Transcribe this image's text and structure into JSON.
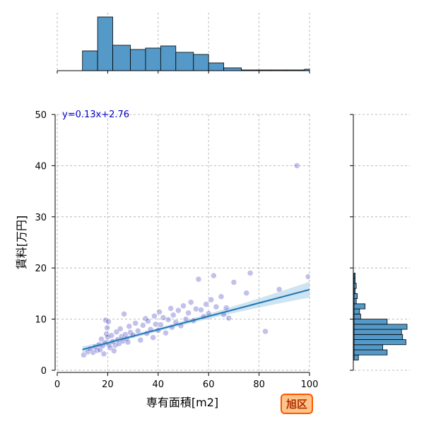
{
  "chart_data": {
    "type": "scatter",
    "xlabel": "専有面積[m2]",
    "ylabel": "賃料[万円]",
    "xlim": [
      0,
      100
    ],
    "ylim": [
      0,
      50
    ],
    "x_ticks": [
      0,
      20,
      40,
      60,
      80,
      100
    ],
    "y_ticks": [
      0,
      10,
      20,
      30,
      40,
      50
    ],
    "grid": true,
    "equation_label": "y=0.13x+2.76",
    "badge_label": "旭区",
    "regression": {
      "slope": 0.13,
      "intercept": 2.76,
      "x_range": [
        10,
        100
      ]
    },
    "x_histogram": {
      "bin_edges": [
        0,
        5,
        10,
        16,
        22,
        29,
        35,
        41,
        47,
        54,
        60,
        66,
        73,
        79,
        85,
        91,
        98,
        100
      ],
      "counts": [
        0,
        0,
        28,
        76,
        36,
        30,
        32,
        35,
        26,
        23,
        11,
        4,
        1,
        1,
        1,
        1,
        2
      ]
    },
    "y_histogram": {
      "bin_edges": [
        2,
        3,
        4,
        5,
        6,
        7,
        8,
        9,
        10,
        11,
        12,
        13,
        14,
        15,
        16,
        17,
        18,
        19
      ],
      "counts": [
        4,
        30,
        26,
        47,
        44,
        43,
        48,
        30,
        6,
        5,
        10,
        2,
        3,
        1,
        2,
        1,
        1
      ]
    },
    "points": [
      [
        10.5,
        3.0
      ],
      [
        12.1,
        3.6
      ],
      [
        13.0,
        4.2
      ],
      [
        14.2,
        3.5
      ],
      [
        15.0,
        4.6
      ],
      [
        15.8,
        3.9
      ],
      [
        16.5,
        5.0
      ],
      [
        17.0,
        4.0
      ],
      [
        17.5,
        6.1
      ],
      [
        18.0,
        4.8
      ],
      [
        18.5,
        3.2
      ],
      [
        19.0,
        5.4
      ],
      [
        19.2,
        9.8
      ],
      [
        19.5,
        7.1
      ],
      [
        19.8,
        8.3
      ],
      [
        20.0,
        6.5
      ],
      [
        20.3,
        9.5
      ],
      [
        20.5,
        5.0
      ],
      [
        21.0,
        4.4
      ],
      [
        21.5,
        6.8
      ],
      [
        22.0,
        5.6
      ],
      [
        22.5,
        3.8
      ],
      [
        23.0,
        4.9
      ],
      [
        23.5,
        7.5
      ],
      [
        24.0,
        6.0
      ],
      [
        24.5,
        5.2
      ],
      [
        25.0,
        8.1
      ],
      [
        25.5,
        6.6
      ],
      [
        26.0,
        5.7
      ],
      [
        26.5,
        11.0
      ],
      [
        27.0,
        7.0
      ],
      [
        27.5,
        6.2
      ],
      [
        28.0,
        5.5
      ],
      [
        28.5,
        8.6
      ],
      [
        29.0,
        7.4
      ],
      [
        30.0,
        6.9
      ],
      [
        31.0,
        9.2
      ],
      [
        32.0,
        7.7
      ],
      [
        33.0,
        5.9
      ],
      [
        34.0,
        8.8
      ],
      [
        35.0,
        10.1
      ],
      [
        35.5,
        7.2
      ],
      [
        36.0,
        9.6
      ],
      [
        37.0,
        8.0
      ],
      [
        38.0,
        6.4
      ],
      [
        38.5,
        10.6
      ],
      [
        39.0,
        9.0
      ],
      [
        40.0,
        7.8
      ],
      [
        40.5,
        11.4
      ],
      [
        41.0,
        8.9
      ],
      [
        42.0,
        10.3
      ],
      [
        43.0,
        7.3
      ],
      [
        44.0,
        9.9
      ],
      [
        45.0,
        12.1
      ],
      [
        45.5,
        8.4
      ],
      [
        46.0,
        10.8
      ],
      [
        47.0,
        9.4
      ],
      [
        48.0,
        11.7
      ],
      [
        49.0,
        8.7
      ],
      [
        50.0,
        12.6
      ],
      [
        51.0,
        10.0
      ],
      [
        52.0,
        11.2
      ],
      [
        53.0,
        13.3
      ],
      [
        54.0,
        9.7
      ],
      [
        55.0,
        12.0
      ],
      [
        56.0,
        17.8
      ],
      [
        57.0,
        11.8
      ],
      [
        58.0,
        10.5
      ],
      [
        59.0,
        12.9
      ],
      [
        60.0,
        11.1
      ],
      [
        61.0,
        13.8
      ],
      [
        62.0,
        18.5
      ],
      [
        63.0,
        12.4
      ],
      [
        65.0,
        14.4
      ],
      [
        66.0,
        10.9
      ],
      [
        67.0,
        12.2
      ],
      [
        68.0,
        10.2
      ],
      [
        70.0,
        17.2
      ],
      [
        75.0,
        15.1
      ],
      [
        76.5,
        19.0
      ],
      [
        82.5,
        7.6
      ],
      [
        88.0,
        15.8
      ],
      [
        95.0,
        40.0
      ],
      [
        99.5,
        18.3
      ]
    ]
  }
}
